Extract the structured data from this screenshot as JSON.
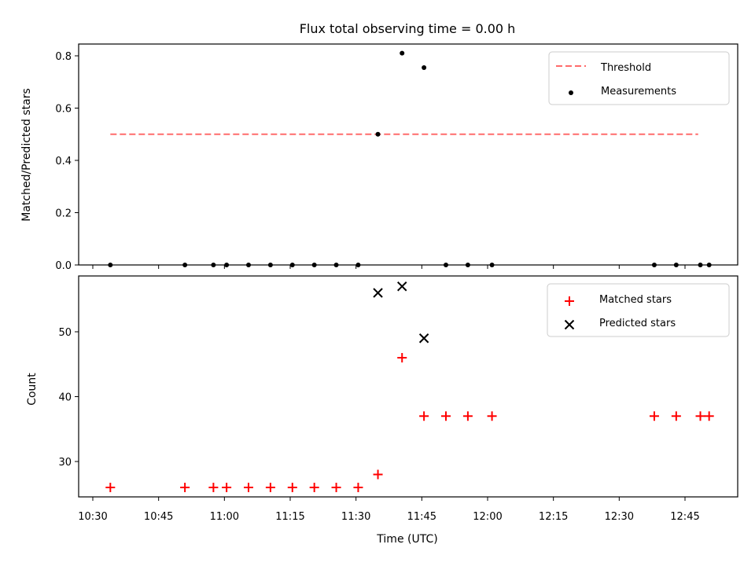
{
  "chart_data": {
    "title": "Flux total observing time = 0.00 h",
    "xlabel": "Time (UTC)",
    "x_tick_labels": [
      "10:30",
      "10:45",
      "11:00",
      "11:15",
      "11:30",
      "11:45",
      "12:00",
      "12:15",
      "12:30",
      "12:45"
    ],
    "panels": [
      {
        "type": "scatter",
        "ylabel": "Matched/Predicted stars",
        "ylim": [
          0,
          0.86
        ],
        "y_ticks": [
          "0.0",
          "0.2",
          "0.4",
          "0.6",
          "0.8"
        ],
        "legend_position": "top-right",
        "series": [
          {
            "name": "Threshold",
            "style": "dashed-line",
            "color": "#ff6b6b",
            "x": [
              "10:34",
              "12:48"
            ],
            "y": [
              0.5,
              0.5
            ]
          },
          {
            "name": "Measurements",
            "style": "dot",
            "color": "#000000",
            "x": [
              "10:34",
              "10:51",
              "10:57.5",
              "11:00.5",
              "11:05.5",
              "11:10.5",
              "11:15.5",
              "11:20.5",
              "11:25.5",
              "11:30.5",
              "11:35",
              "11:40.5",
              "11:45.5",
              "11:50.5",
              "11:55.5",
              "12:01",
              "12:38",
              "12:43",
              "12:48.5",
              "12:50.5"
            ],
            "y": [
              0,
              0,
              0,
              0,
              0,
              0,
              0,
              0,
              0,
              0,
              0.5,
              0.81,
              0.755,
              0,
              0,
              0,
              0,
              0,
              0,
              0
            ]
          }
        ]
      },
      {
        "type": "scatter",
        "ylabel": "Count",
        "ylim": [
          24.5,
          58.5
        ],
        "y_ticks": [
          "30",
          "40",
          "50"
        ],
        "legend_position": "top-right",
        "series": [
          {
            "name": "Matched stars",
            "style": "plus",
            "color": "#ff0000",
            "x": [
              "10:34",
              "10:51",
              "10:57.5",
              "11:00.5",
              "11:05.5",
              "11:10.5",
              "11:15.5",
              "11:20.5",
              "11:25.5",
              "11:30.5",
              "11:35",
              "11:40.5",
              "11:45.5",
              "11:50.5",
              "11:55.5",
              "12:01",
              "12:38",
              "12:43",
              "12:48.5",
              "12:50.5"
            ],
            "y": [
              26,
              26,
              26,
              26,
              26,
              26,
              26,
              26,
              26,
              26,
              28,
              46,
              37,
              37,
              37,
              37,
              37,
              37,
              37,
              37
            ]
          },
          {
            "name": "Predicted stars",
            "style": "cross",
            "color": "#000000",
            "x": [
              "11:35",
              "11:40.5",
              "11:45.5"
            ],
            "y": [
              56,
              57,
              49
            ]
          }
        ]
      }
    ]
  }
}
